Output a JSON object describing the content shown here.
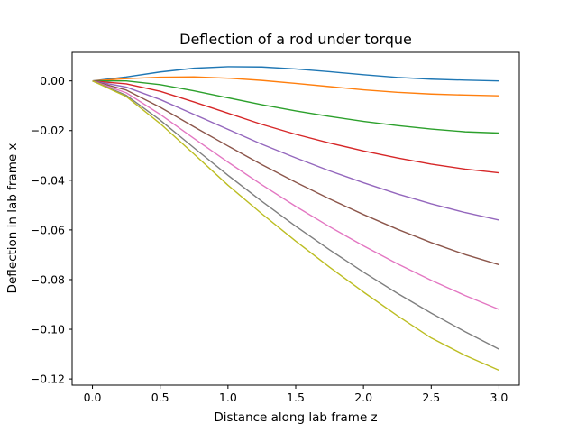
{
  "chart_data": {
    "type": "line",
    "title": "Deflection of a rod under torque",
    "xlabel": "Distance along lab frame z",
    "ylabel": "Deflection in lab frame x",
    "xlim": [
      -0.15,
      3.15
    ],
    "ylim": [
      -0.1225,
      0.0115
    ],
    "x_ticks": [
      0.0,
      0.5,
      1.0,
      1.5,
      2.0,
      2.5,
      3.0
    ],
    "x_tick_labels": [
      "0.0",
      "0.5",
      "1.0",
      "1.5",
      "2.0",
      "2.5",
      "3.0"
    ],
    "y_ticks": [
      0.0,
      -0.02,
      -0.04,
      -0.06,
      -0.08,
      -0.1,
      -0.12
    ],
    "y_tick_labels": [
      "0.00",
      "−0.02",
      "−0.04",
      "−0.06",
      "−0.08",
      "−0.10",
      "−0.12"
    ],
    "grid": false,
    "legend": "none",
    "x": [
      0.0,
      0.25,
      0.5,
      0.75,
      1.0,
      1.25,
      1.5,
      1.75,
      2.0,
      2.25,
      2.5,
      2.75,
      3.0
    ],
    "series": [
      {
        "values": [
          0.0,
          0.0016,
          0.0036,
          0.0051,
          0.0057,
          0.0056,
          0.0048,
          0.0037,
          0.0025,
          0.0014,
          0.0007,
          0.0003,
          0.0
        ]
      },
      {
        "values": [
          0.0,
          0.0009,
          0.0015,
          0.0016,
          0.0011,
          0.0002,
          -0.001,
          -0.0023,
          -0.0036,
          -0.0046,
          -0.0053,
          -0.0057,
          -0.006
        ]
      },
      {
        "values": [
          0.0,
          0.0,
          -0.0015,
          -0.004,
          -0.0068,
          -0.0096,
          -0.0121,
          -0.0143,
          -0.0163,
          -0.018,
          -0.0194,
          -0.0205,
          -0.021
        ]
      },
      {
        "values": [
          0.0,
          -0.0012,
          -0.0042,
          -0.0085,
          -0.013,
          -0.0175,
          -0.0215,
          -0.025,
          -0.0282,
          -0.031,
          -0.0335,
          -0.0355,
          -0.037
        ]
      },
      {
        "values": [
          0.0,
          -0.0025,
          -0.0075,
          -0.0135,
          -0.0195,
          -0.0255,
          -0.031,
          -0.0362,
          -0.041,
          -0.0455,
          -0.0495,
          -0.053,
          -0.056
        ]
      },
      {
        "values": [
          0.0,
          -0.0037,
          -0.0106,
          -0.0185,
          -0.0262,
          -0.0337,
          -0.0408,
          -0.0475,
          -0.0538,
          -0.0597,
          -0.0651,
          -0.0699,
          -0.074
        ]
      },
      {
        "values": [
          0.0,
          -0.0048,
          -0.0135,
          -0.0232,
          -0.0327,
          -0.0418,
          -0.0505,
          -0.0587,
          -0.0664,
          -0.0736,
          -0.0803,
          -0.0864,
          -0.092
        ]
      },
      {
        "values": [
          0.0,
          -0.0058,
          -0.0158,
          -0.027,
          -0.038,
          -0.0485,
          -0.0585,
          -0.068,
          -0.077,
          -0.0855,
          -0.0935,
          -0.101,
          -0.108
        ]
      },
      {
        "values": [
          0.0,
          -0.0063,
          -0.0172,
          -0.0295,
          -0.042,
          -0.0535,
          -0.0645,
          -0.075,
          -0.085,
          -0.0945,
          -0.1035,
          -0.1105,
          -0.1165
        ]
      }
    ]
  }
}
